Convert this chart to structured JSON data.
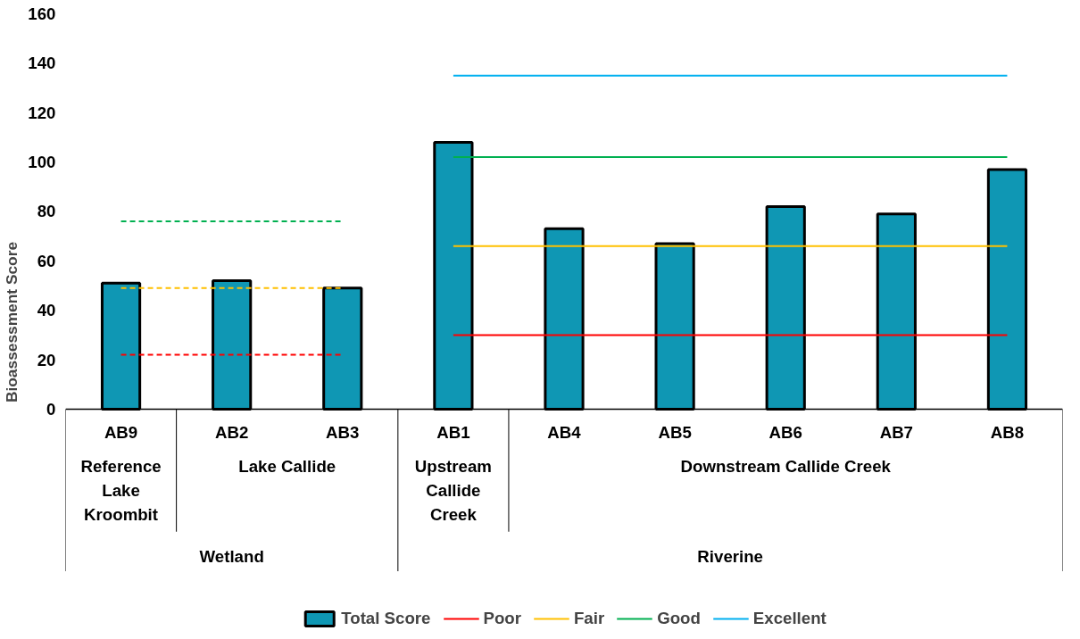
{
  "chart_data": {
    "type": "bar",
    "ylabel": "Bioassessment Score",
    "categories": [
      "AB9",
      "AB2",
      "AB3",
      "AB1",
      "AB4",
      "AB5",
      "AB6",
      "AB7",
      "AB8"
    ],
    "ylim": [
      0,
      160
    ],
    "yticks": [
      0,
      20,
      40,
      60,
      80,
      100,
      120,
      140,
      160
    ],
    "grid": false,
    "legend": "bottom",
    "series": [
      {
        "name": "Total Score",
        "color": "#0f97b4",
        "values": [
          51,
          52,
          49,
          108,
          73,
          67,
          82,
          79,
          97
        ]
      },
      {
        "type": "line",
        "line_style": "dashed",
        "color": "#ff0000",
        "values": [
          22,
          22,
          22,
          null,
          null,
          null,
          null,
          null,
          null
        ]
      },
      {
        "type": "line",
        "line_style": "dashed",
        "color": "#ffc000",
        "values": [
          49,
          49,
          49,
          null,
          null,
          null,
          null,
          null,
          null
        ]
      },
      {
        "type": "line",
        "line_style": "dashed",
        "color": "#00b050",
        "values": [
          76,
          76,
          76,
          null,
          null,
          null,
          null,
          null,
          null
        ]
      },
      {
        "name": "Poor",
        "type": "line",
        "line_style": "solid",
        "color": "#ff0000",
        "values": [
          null,
          null,
          null,
          30,
          30,
          30,
          30,
          30,
          30
        ]
      },
      {
        "name": "Fair",
        "type": "line",
        "line_style": "solid",
        "color": "#ffc000",
        "values": [
          null,
          null,
          null,
          66,
          66,
          66,
          66,
          66,
          66
        ]
      },
      {
        "name": "Good",
        "type": "line",
        "line_style": "solid",
        "color": "#00b050",
        "values": [
          null,
          null,
          null,
          102,
          102,
          102,
          102,
          102,
          102
        ]
      },
      {
        "name": "Excellent",
        "type": "line",
        "line_style": "solid",
        "color": "#00b0f0",
        "values": [
          null,
          null,
          null,
          135,
          135,
          135,
          135,
          135,
          135
        ]
      }
    ],
    "annotations": [
      "Reference\nLake\nKroombit",
      "Lake Callide",
      "Upstream\nCallide\nCreek",
      "Downstream Callide Creek",
      "Wetland",
      "Riverine"
    ]
  }
}
